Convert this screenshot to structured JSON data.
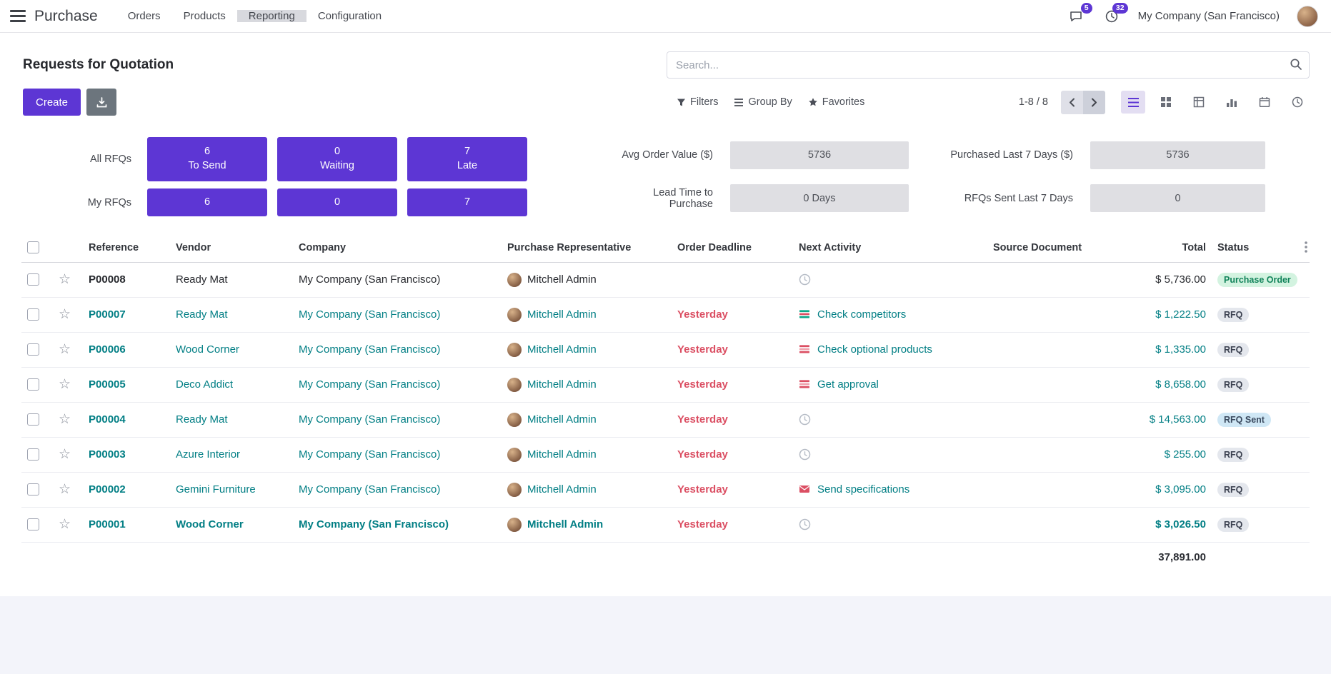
{
  "colors": {
    "accent": "#5d36d4",
    "link_teal": "#017e84",
    "danger_red": "#db4f63",
    "success_badge": "#d3f3e0",
    "info_badge": "#cfe7f5"
  },
  "navbar": {
    "app_name": "Purchase",
    "menus": [
      {
        "label": "Orders"
      },
      {
        "label": "Products"
      },
      {
        "label": "Reporting"
      },
      {
        "label": "Configuration"
      }
    ],
    "messages_badge": "5",
    "activities_badge": "32",
    "company": "My Company (San Francisco)"
  },
  "control_panel": {
    "title": "Requests for Quotation",
    "search_placeholder": "Search...",
    "create_label": "Create",
    "filters_label": "Filters",
    "group_by_label": "Group By",
    "favorites_label": "Favorites",
    "pager": "1-8 / 8"
  },
  "dashboard": {
    "all_rfqs_label": "All RFQs",
    "my_rfqs_label": "My RFQs",
    "buttons": [
      {
        "count": "6",
        "label": "To Send",
        "my_count": "6"
      },
      {
        "count": "0",
        "label": "Waiting",
        "my_count": "0"
      },
      {
        "count": "7",
        "label": "Late",
        "my_count": "7"
      }
    ],
    "metrics": [
      {
        "label": "Avg Order Value ($)",
        "value": "5736"
      },
      {
        "label": "Lead Time to Purchase",
        "value": "0  Days"
      },
      {
        "label": "Purchased Last 7 Days ($)",
        "value": "5736"
      },
      {
        "label": "RFQs Sent Last 7 Days",
        "value": "0"
      }
    ]
  },
  "table": {
    "columns": [
      "Reference",
      "Vendor",
      "Company",
      "Purchase Representative",
      "Order Deadline",
      "Next Activity",
      "Source Document",
      "Total",
      "Status"
    ],
    "rows": [
      {
        "reference": "P00008",
        "vendor": "Ready Mat",
        "company": "My Company (San Francisco)",
        "representative": "Mitchell Admin",
        "deadline": "",
        "activity_icon": "clock",
        "activity_label": "",
        "source": "",
        "total": "$ 5,736.00",
        "status": "Purchase Order",
        "status_type": "success",
        "row_style": "dark"
      },
      {
        "reference": "P00007",
        "vendor": "Ready Mat",
        "company": "My Company (San Francisco)",
        "representative": "Mitchell Admin",
        "deadline": "Yesterday",
        "activity_icon": "list-teal",
        "activity_label": "Check competitors",
        "source": "",
        "total": "$ 1,222.50",
        "status": "RFQ",
        "status_type": "default",
        "row_style": "teal"
      },
      {
        "reference": "P00006",
        "vendor": "Wood Corner",
        "company": "My Company (San Francisco)",
        "representative": "Mitchell Admin",
        "deadline": "Yesterday",
        "activity_icon": "list-red",
        "activity_label": "Check optional products",
        "source": "",
        "total": "$ 1,335.00",
        "status": "RFQ",
        "status_type": "default",
        "row_style": "teal"
      },
      {
        "reference": "P00005",
        "vendor": "Deco Addict",
        "company": "My Company (San Francisco)",
        "representative": "Mitchell Admin",
        "deadline": "Yesterday",
        "activity_icon": "list-red",
        "activity_label": "Get approval",
        "source": "",
        "total": "$ 8,658.00",
        "status": "RFQ",
        "status_type": "default",
        "row_style": "teal"
      },
      {
        "reference": "P00004",
        "vendor": "Ready Mat",
        "company": "My Company (San Francisco)",
        "representative": "Mitchell Admin",
        "deadline": "Yesterday",
        "activity_icon": "clock",
        "activity_label": "",
        "source": "",
        "total": "$ 14,563.00",
        "status": "RFQ Sent",
        "status_type": "info",
        "row_style": "teal"
      },
      {
        "reference": "P00003",
        "vendor": "Azure Interior",
        "company": "My Company (San Francisco)",
        "representative": "Mitchell Admin",
        "deadline": "Yesterday",
        "activity_icon": "clock",
        "activity_label": "",
        "source": "",
        "total": "$ 255.00",
        "status": "RFQ",
        "status_type": "default",
        "row_style": "teal"
      },
      {
        "reference": "P00002",
        "vendor": "Gemini Furniture",
        "company": "My Company (San Francisco)",
        "representative": "Mitchell Admin",
        "deadline": "Yesterday",
        "activity_icon": "envelope",
        "activity_label": "Send specifications",
        "source": "",
        "total": "$ 3,095.00",
        "status": "RFQ",
        "status_type": "default",
        "row_style": "teal"
      },
      {
        "reference": "P00001",
        "vendor": "Wood Corner",
        "company": "My Company (San Francisco)",
        "representative": "Mitchell Admin",
        "deadline": "Yesterday",
        "activity_icon": "clock",
        "activity_label": "",
        "source": "",
        "total": "$ 3,026.50",
        "status": "RFQ",
        "status_type": "default",
        "row_style": "teal-bold"
      }
    ],
    "footer_total": "37,891.00"
  }
}
